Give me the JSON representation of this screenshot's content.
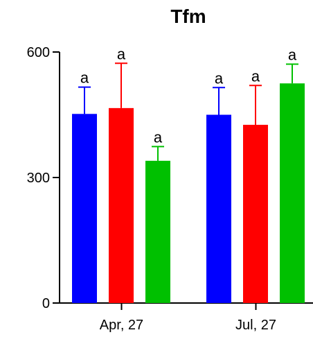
{
  "chart_data": {
    "type": "bar",
    "title": "Tfm",
    "xlabel": "",
    "ylabel": "",
    "ylim": [
      0,
      600
    ],
    "yticks": [
      0,
      300,
      600
    ],
    "categories": [
      "Apr, 27",
      "Jul, 27"
    ],
    "series": [
      {
        "color": "#0000ff",
        "values": [
          452,
          450
        ],
        "error_upper": [
          516,
          515
        ],
        "labels": [
          "a",
          "a"
        ]
      },
      {
        "color": "#ff0000",
        "values": [
          466,
          426
        ],
        "error_upper": [
          573,
          520
        ],
        "labels": [
          "a",
          "a"
        ]
      },
      {
        "color": "#00c000",
        "values": [
          340,
          525
        ],
        "error_upper": [
          374,
          571
        ],
        "labels": [
          "a",
          "a"
        ]
      }
    ],
    "grid": false,
    "legend": "none"
  }
}
